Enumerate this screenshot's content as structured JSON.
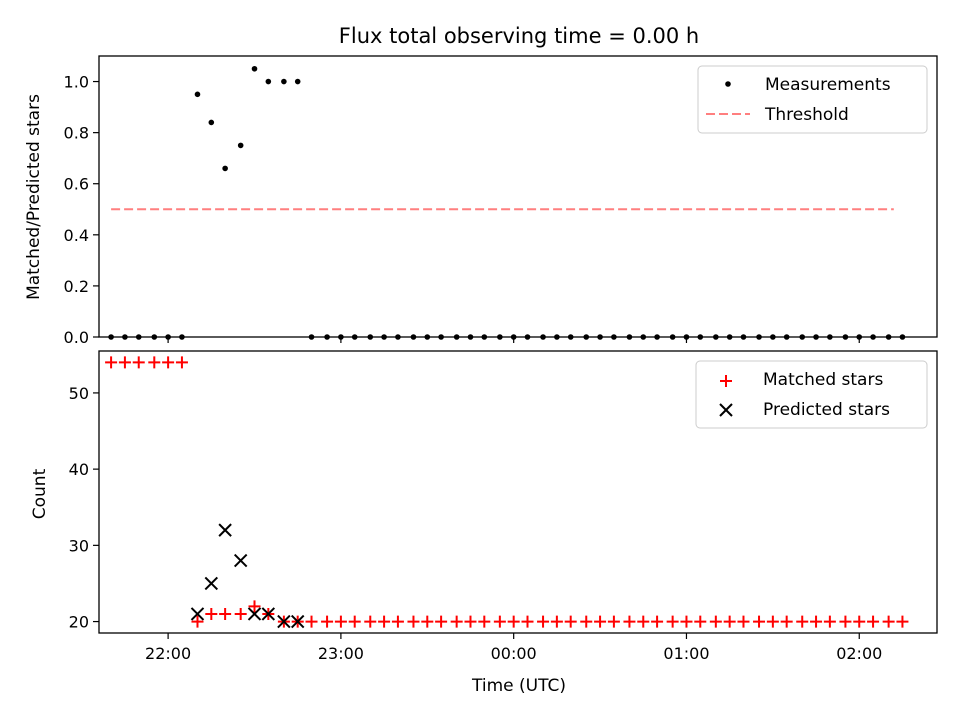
{
  "title": "Flux total observing time = 0.00 h",
  "chart_data": [
    {
      "type": "scatter",
      "panel": "top",
      "ylabel": "Matched/Predicted stars",
      "ylim": [
        0.0,
        1.1
      ],
      "yticks": [
        "0.0",
        "0.2",
        "0.4",
        "0.6",
        "0.8",
        "1.0"
      ],
      "xlim_hours": [
        21.6,
        26.45
      ],
      "legend_placement": "top-right",
      "series": [
        {
          "name": "Measurements",
          "marker": "dot",
          "color": "#000000",
          "x": [
            21.67,
            21.75,
            21.83,
            21.92,
            22.0,
            22.08,
            22.17,
            22.25,
            22.33,
            22.42,
            22.5,
            22.58,
            22.67,
            22.75,
            22.83,
            22.92,
            23.0,
            23.08,
            23.17,
            23.25,
            23.33,
            23.42,
            23.5,
            23.58,
            23.67,
            23.75,
            23.83,
            23.92,
            24.0,
            24.08,
            24.17,
            24.25,
            24.33,
            24.42,
            24.5,
            24.58,
            24.67,
            24.75,
            24.83,
            24.92,
            25.0,
            25.08,
            25.17,
            25.25,
            25.33,
            25.42,
            25.5,
            25.58,
            25.67,
            25.75,
            25.83,
            25.92,
            26.0,
            26.08,
            26.17,
            26.25
          ],
          "y": [
            0.0,
            0.0,
            0.0,
            0.0,
            0.0,
            0.0,
            0.95,
            0.84,
            0.66,
            0.75,
            1.05,
            1.0,
            1.0,
            1.0,
            0.0,
            0.0,
            0.0,
            0.0,
            0.0,
            0.0,
            0.0,
            0.0,
            0.0,
            0.0,
            0.0,
            0.0,
            0.0,
            0.0,
            0.0,
            0.0,
            0.0,
            0.0,
            0.0,
            0.0,
            0.0,
            0.0,
            0.0,
            0.0,
            0.0,
            0.0,
            0.0,
            0.0,
            0.0,
            0.0,
            0.0,
            0.0,
            0.0,
            0.0,
            0.0,
            0.0,
            0.0,
            0.0,
            0.0,
            0.0,
            0.0,
            0.0
          ]
        },
        {
          "name": "Threshold",
          "marker": "dashed-line",
          "color": "#ff7f7f",
          "x": [
            21.67,
            26.2
          ],
          "y": [
            0.5,
            0.5
          ]
        }
      ]
    },
    {
      "type": "scatter",
      "panel": "bottom",
      "xlabel": "Time (UTC)",
      "ylabel": "Count",
      "ylim": [
        18.5,
        55.5
      ],
      "yticks": [
        "20",
        "30",
        "40",
        "50"
      ],
      "xlim_hours": [
        21.6,
        26.45
      ],
      "xticks": [
        "22:00",
        "23:00",
        "00:00",
        "01:00",
        "02:00"
      ],
      "legend_placement": "top-right",
      "series": [
        {
          "name": "Matched stars",
          "marker": "plus",
          "color": "#ff0000",
          "x": [
            21.67,
            21.75,
            21.83,
            21.92,
            22.0,
            22.08,
            22.17,
            22.25,
            22.33,
            22.42,
            22.5,
            22.58,
            22.67,
            22.75,
            22.83,
            22.92,
            23.0,
            23.08,
            23.17,
            23.25,
            23.33,
            23.42,
            23.5,
            23.58,
            23.67,
            23.75,
            23.83,
            23.92,
            24.0,
            24.08,
            24.17,
            24.25,
            24.33,
            24.42,
            24.5,
            24.58,
            24.67,
            24.75,
            24.83,
            24.92,
            25.0,
            25.08,
            25.17,
            25.25,
            25.33,
            25.42,
            25.5,
            25.58,
            25.67,
            25.75,
            25.83,
            25.92,
            26.0,
            26.08,
            26.17,
            26.25
          ],
          "y": [
            54,
            54,
            54,
            54,
            54,
            54,
            20,
            21,
            21,
            21,
            22,
            21,
            20,
            20,
            20,
            20,
            20,
            20,
            20,
            20,
            20,
            20,
            20,
            20,
            20,
            20,
            20,
            20,
            20,
            20,
            20,
            20,
            20,
            20,
            20,
            20,
            20,
            20,
            20,
            20,
            20,
            20,
            20,
            20,
            20,
            20,
            20,
            20,
            20,
            20,
            20,
            20,
            20,
            20,
            20,
            20
          ]
        },
        {
          "name": "Predicted stars",
          "marker": "x",
          "color": "#000000",
          "x": [
            22.17,
            22.25,
            22.33,
            22.42,
            22.5,
            22.58,
            22.67,
            22.75
          ],
          "y": [
            21,
            25,
            32,
            28,
            21,
            21,
            20,
            20
          ]
        }
      ]
    }
  ]
}
